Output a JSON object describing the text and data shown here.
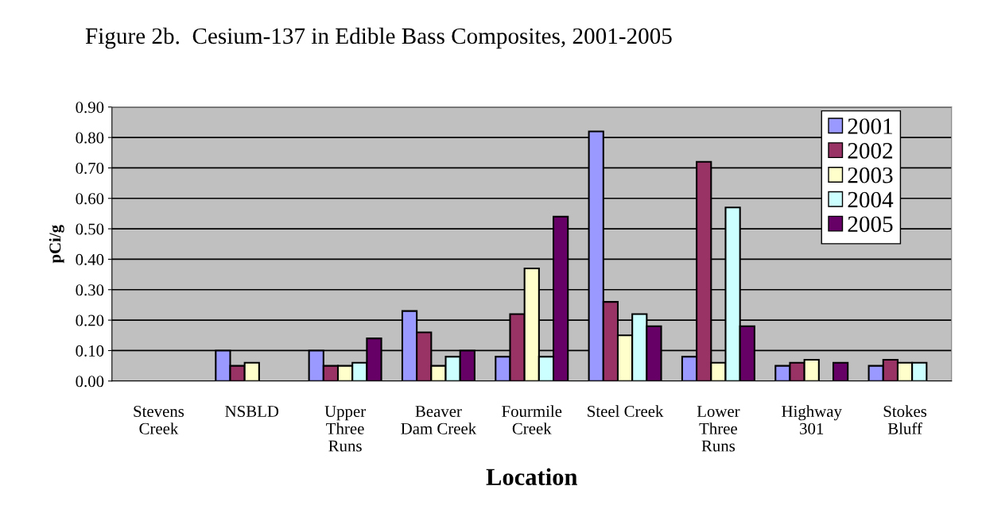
{
  "chart_data": {
    "type": "bar",
    "title": "Figure 2b.  Cesium-137 in Edible Bass Composites, 2001-2005",
    "xlabel": "Location",
    "ylabel": "pCi/g",
    "categories": [
      "Stevens\nCreek",
      "NSBLD",
      "Upper\nThree\nRuns",
      "Beaver\nDam Creek",
      "Fourmile\nCreek",
      "Steel Creek",
      "Lower\nThree\nRuns",
      "Highway\n301",
      "Stokes\nBluff"
    ],
    "series": [
      {
        "name": "2001",
        "color": "#9999ff",
        "values": [
          null,
          0.1,
          0.1,
          0.23,
          0.08,
          0.82,
          0.08,
          0.05,
          0.05
        ]
      },
      {
        "name": "2002",
        "color": "#993366",
        "values": [
          null,
          0.05,
          0.05,
          0.16,
          0.22,
          0.26,
          0.72,
          0.06,
          0.07
        ]
      },
      {
        "name": "2003",
        "color": "#ffffcc",
        "values": [
          null,
          0.06,
          0.05,
          0.05,
          0.37,
          0.15,
          0.06,
          0.07,
          0.06
        ]
      },
      {
        "name": "2004",
        "color": "#ccffff",
        "values": [
          null,
          null,
          0.06,
          0.08,
          0.08,
          0.22,
          0.57,
          null,
          0.06
        ]
      },
      {
        "name": "2005",
        "color": "#660066",
        "values": [
          null,
          null,
          0.14,
          0.1,
          0.54,
          0.18,
          0.18,
          0.06,
          null
        ]
      }
    ],
    "ylim": [
      0,
      0.9
    ],
    "yticks": [
      {
        "value": 0,
        "label": "0.00"
      },
      {
        "value": 0.1,
        "label": "0.10"
      },
      {
        "value": 0.2,
        "label": "0.20"
      },
      {
        "value": 0.3,
        "label": "0.30"
      },
      {
        "value": 0.4,
        "label": "0.40"
      },
      {
        "value": 0.5,
        "label": "0.50"
      },
      {
        "value": 0.6,
        "label": "0.60"
      },
      {
        "value": 0.7,
        "label": "0.70"
      },
      {
        "value": 0.8,
        "label": "0.80"
      },
      {
        "value": 0.9,
        "label": "0.90"
      }
    ],
    "grid": "y",
    "legend": "top right"
  }
}
